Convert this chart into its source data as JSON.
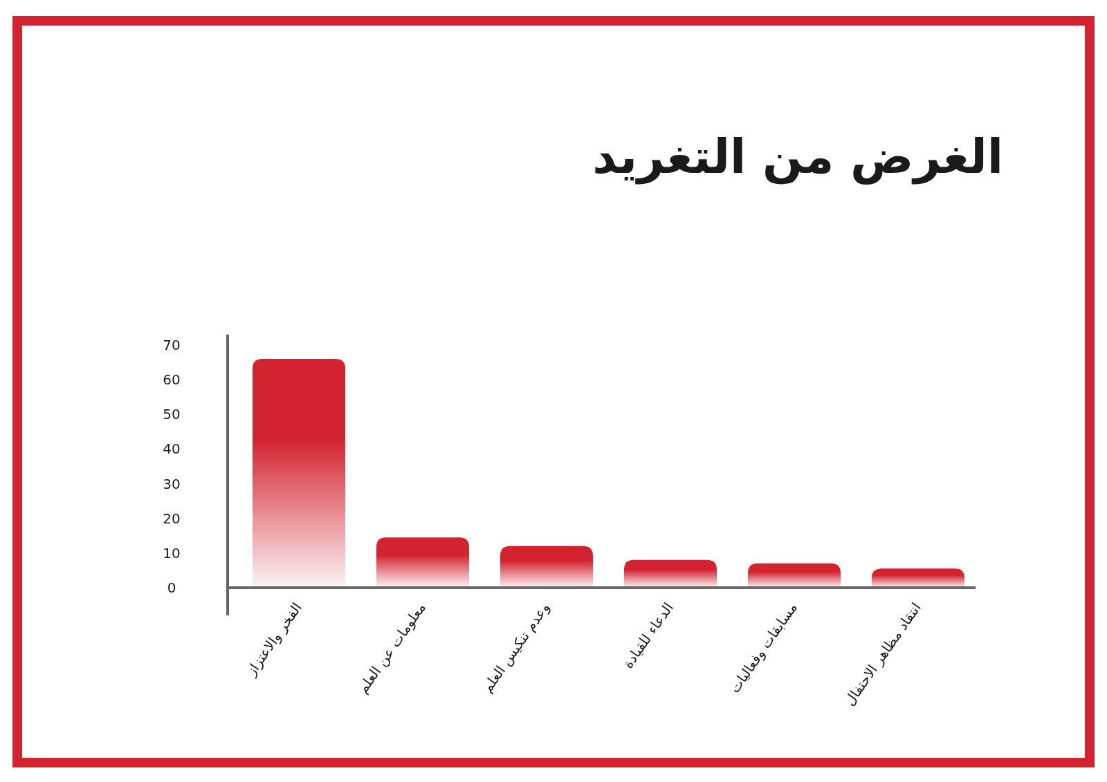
{
  "chart_data": {
    "type": "bar",
    "title": "الغرض من التغريد",
    "categories": [
      "الفخر والاعتزاز",
      "معلومات عن العلم",
      "وعدم تنكيس العلم",
      "الدعاء للقيادة",
      "مسابقات وفعاليات",
      "انتقاد مظاهر الاحتفال"
    ],
    "values": [
      66,
      14.5,
      12,
      8,
      7,
      5.5
    ],
    "color": "#d42330",
    "ylim": [
      -8,
      73
    ],
    "yticks": [
      0,
      10,
      20,
      30,
      40,
      50,
      60,
      70
    ],
    "grid": false
  }
}
